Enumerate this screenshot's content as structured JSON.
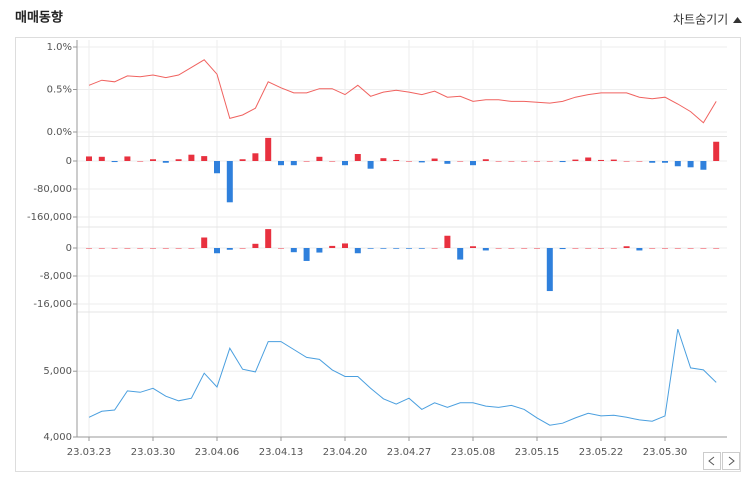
{
  "header": {
    "title": "매매동향",
    "toggle": "차트숨기기"
  },
  "chart_data": [
    {
      "type": "line",
      "color": "#f0625f",
      "ylim": [
        0,
        1
      ],
      "yticks": [
        {
          "value": 1,
          "label": "1.0%"
        },
        {
          "value": 0.5,
          "label": "0.5%"
        },
        {
          "value": 0,
          "label": "0.0%"
        }
      ],
      "values": [
        0.55,
        0.61,
        0.59,
        0.66,
        0.65,
        0.67,
        0.64,
        0.67,
        0.76,
        0.85,
        0.68,
        0.16,
        0.2,
        0.28,
        0.59,
        0.52,
        0.46,
        0.46,
        0.51,
        0.51,
        0.44,
        0.55,
        0.42,
        0.47,
        0.49,
        0.47,
        0.44,
        0.48,
        0.41,
        0.42,
        0.36,
        0.38,
        0.38,
        0.36,
        0.36,
        0.35,
        0.34,
        0.36,
        0.41,
        0.44,
        0.46,
        0.46,
        0.46,
        0.41,
        0.39,
        0.41,
        0.33,
        0.24,
        0.11,
        0.36
      ]
    },
    {
      "type": "bar",
      "color": "#e8313f",
      "negative_color": "#2f80dc",
      "ylim": [
        -180000,
        70000
      ],
      "yticks": [
        0,
        {
          "value": -80000,
          "label": "-80,000"
        },
        {
          "value": -160000,
          "label": "-160,000"
        }
      ],
      "values": [
        13000,
        12000,
        -3000,
        13000,
        0,
        5000,
        -5000,
        5000,
        18000,
        14000,
        -35000,
        -118000,
        5000,
        22000,
        66000,
        -12000,
        -12000,
        0,
        12000,
        0,
        -12000,
        20000,
        -22000,
        8000,
        3000,
        0,
        -4000,
        7000,
        -8000,
        0,
        -12000,
        5000,
        0,
        0,
        0,
        0,
        0,
        -3000,
        4000,
        10000,
        3000,
        4000,
        0,
        0,
        -5000,
        -5000,
        -15000,
        -18000,
        -25000,
        55000
      ]
    },
    {
      "type": "bar",
      "color": "#e8313f",
      "negative_color": "#2f80dc",
      "ylim": [
        -18000,
        6000
      ],
      "yticks": [
        0,
        {
          "value": -8000,
          "label": "-8,000"
        },
        {
          "value": -16000,
          "label": "-16,000"
        }
      ],
      "values": [
        0,
        0,
        0,
        0,
        0,
        0,
        0,
        0,
        0,
        3000,
        -1500,
        -500,
        0,
        1200,
        5400,
        0,
        -1200,
        -3700,
        -1300,
        600,
        1300,
        -1500,
        -200,
        -200,
        -200,
        -200,
        -200,
        0,
        3500,
        -3300,
        500,
        -700,
        0,
        0,
        0,
        0,
        -12300,
        -300,
        0,
        0,
        0,
        0,
        500,
        -700,
        0,
        0,
        0,
        0,
        0,
        0
      ]
    },
    {
      "type": "line",
      "color": "#4a9fdf",
      "ylim": [
        4000,
        5900
      ],
      "yticks": [
        {
          "value": 5000,
          "label": "5,000"
        },
        {
          "value": 4000,
          "label": "4,000"
        }
      ],
      "categories": [
        "23.03.23",
        null,
        null,
        null,
        null,
        "23.03.30",
        null,
        null,
        null,
        null,
        "23.04.06",
        null,
        null,
        null,
        null,
        "23.04.13",
        null,
        null,
        null,
        null,
        "23.04.20",
        null,
        null,
        null,
        null,
        "23.04.27",
        null,
        null,
        null,
        null,
        "23.05.08",
        null,
        null,
        null,
        null,
        "23.05.15",
        null,
        null,
        null,
        null,
        "23.05.22",
        null,
        null,
        null,
        null,
        "23.05.30",
        null,
        null,
        null,
        null
      ],
      "values": [
        4300,
        4390,
        4410,
        4700,
        4680,
        4740,
        4620,
        4550,
        4590,
        4970,
        4760,
        5350,
        5030,
        4990,
        5450,
        5450,
        5330,
        5210,
        5180,
        5020,
        4920,
        4920,
        4740,
        4580,
        4500,
        4590,
        4420,
        4520,
        4450,
        4520,
        4520,
        4470,
        4450,
        4480,
        4420,
        4290,
        4180,
        4210,
        4290,
        4360,
        4320,
        4330,
        4300,
        4260,
        4240,
        4320,
        5640,
        5050,
        5020,
        4830
      ]
    }
  ]
}
